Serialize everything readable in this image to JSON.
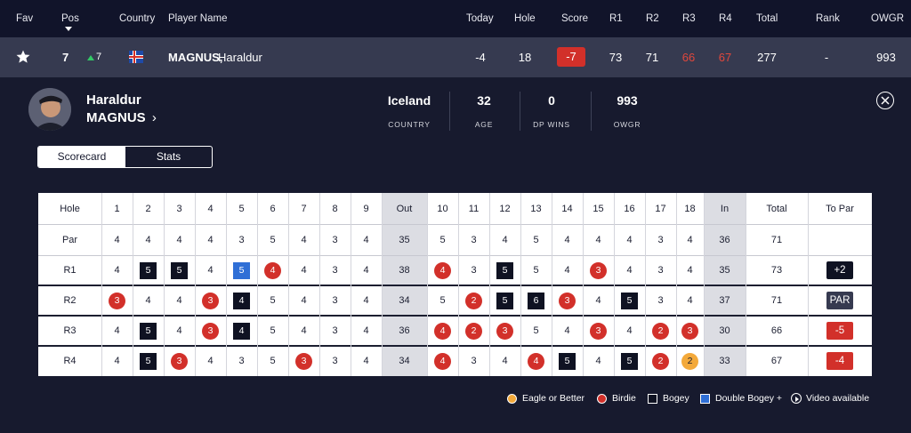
{
  "header": {
    "fav": "Fav",
    "pos": "Pos",
    "country": "Country",
    "player_name": "Player Name",
    "today": "Today",
    "hole": "Hole",
    "score": "Score",
    "r1": "R1",
    "r2": "R2",
    "r3": "R3",
    "r4": "R4",
    "total": "Total",
    "rank": "Rank",
    "owgr": "OWGR"
  },
  "player_row": {
    "favourite_icon": "star-icon",
    "position": "7",
    "movement": "7",
    "movement_icon": "arrow-up-icon",
    "flag_icon": "iceland-flag-icon",
    "surname": "MAGNUS,",
    "firstname": " Haraldur",
    "today": "-4",
    "hole": "18",
    "score": "-7",
    "r1": "73",
    "r2": "71",
    "r3": "66",
    "r4": "67",
    "total": "277",
    "rank": "-",
    "owgr": "993"
  },
  "profile": {
    "first_name": "Haraldur",
    "last_name": "MAGNUS",
    "chevron": "›",
    "stats": [
      {
        "value": "Iceland",
        "label": "COUNTRY"
      },
      {
        "value": "32",
        "label": "AGE"
      },
      {
        "value": "0",
        "label": "DP WINS"
      },
      {
        "value": "993",
        "label": "OWGR"
      }
    ]
  },
  "tabs": {
    "scorecard": "Scorecard",
    "stats": "Stats"
  },
  "scorecard": {
    "hole_label": "Hole",
    "par_label": "Par",
    "out_label": "Out",
    "in_label": "In",
    "total_label": "Total",
    "topar_label": "To Par",
    "holes_front": [
      "1",
      "2",
      "3",
      "4",
      "5",
      "6",
      "7",
      "8",
      "9"
    ],
    "holes_back": [
      "10",
      "11",
      "12",
      "13",
      "14",
      "15",
      "16",
      "17",
      "18"
    ],
    "par_front": [
      "4",
      "4",
      "4",
      "4",
      "3",
      "5",
      "4",
      "3",
      "4"
    ],
    "par_out": "35",
    "par_back": [
      "5",
      "3",
      "4",
      "5",
      "4",
      "4",
      "4",
      "3",
      "4"
    ],
    "par_in": "36",
    "par_total": "71",
    "rounds": [
      {
        "label": "R1",
        "front": [
          "4",
          "5",
          "5",
          "4",
          "5",
          "4",
          "4",
          "3",
          "4"
        ],
        "front_marks": [
          "",
          "bogey",
          "bogey",
          "",
          "dbogey",
          "birdie",
          "",
          "",
          ""
        ],
        "out": "38",
        "back": [
          "4",
          "3",
          "5",
          "5",
          "4",
          "3",
          "4",
          "3",
          "4"
        ],
        "back_marks": [
          "birdie",
          "",
          "bogey",
          "",
          "",
          "birdie",
          "",
          "",
          ""
        ],
        "in": "35",
        "total": "73",
        "to_par": "+2",
        "to_par_style": "dark"
      },
      {
        "label": "R2",
        "front": [
          "3",
          "4",
          "4",
          "3",
          "4",
          "5",
          "4",
          "3",
          "4"
        ],
        "front_marks": [
          "birdie",
          "",
          "",
          "birdie",
          "bogey",
          "",
          "",
          "",
          ""
        ],
        "out": "34",
        "back": [
          "5",
          "2",
          "5",
          "6",
          "3",
          "4",
          "5",
          "3",
          "4"
        ],
        "back_marks": [
          "",
          "birdie",
          "bogey",
          "bogey",
          "birdie",
          "",
          "bogey",
          "",
          ""
        ],
        "in": "37",
        "total": "71",
        "to_par": "PAR",
        "to_par_style": "par"
      },
      {
        "label": "R3",
        "front": [
          "4",
          "5",
          "4",
          "3",
          "4",
          "5",
          "4",
          "3",
          "4"
        ],
        "front_marks": [
          "",
          "bogey",
          "",
          "birdie",
          "bogey",
          "",
          "",
          "",
          ""
        ],
        "out": "36",
        "back": [
          "4",
          "2",
          "3",
          "5",
          "4",
          "3",
          "4",
          "2",
          "3"
        ],
        "back_marks": [
          "birdie",
          "birdie",
          "birdie",
          "",
          "",
          "birdie",
          "",
          "birdie",
          "birdie"
        ],
        "in": "30",
        "total": "66",
        "to_par": "-5",
        "to_par_style": "red"
      },
      {
        "label": "R4",
        "front": [
          "4",
          "5",
          "3",
          "4",
          "3",
          "5",
          "3",
          "3",
          "4"
        ],
        "front_marks": [
          "",
          "bogey",
          "birdie",
          "",
          "",
          "",
          "birdie",
          "",
          ""
        ],
        "out": "34",
        "back": [
          "4",
          "3",
          "4",
          "4",
          "5",
          "4",
          "5",
          "2",
          "2"
        ],
        "back_marks": [
          "birdie",
          "",
          "",
          "birdie",
          "bogey",
          "",
          "bogey",
          "birdie",
          "eagle"
        ],
        "in": "33",
        "total": "67",
        "to_par": "-4",
        "to_par_style": "red"
      }
    ]
  },
  "legend": {
    "eagle": "Eagle or Better",
    "birdie": "Birdie",
    "bogey": "Bogey",
    "double_bogey": "Double Bogey +",
    "video": "Video available"
  },
  "colors": {
    "background": "#171a2e",
    "header_bg": "#11142a",
    "player_row_bg": "#363a50",
    "birdie": "#d2302a",
    "eagle": "#f3a93a",
    "bogey": "#0f1222",
    "double_bogey": "#2f6fd6",
    "movement_up": "#32c866"
  }
}
